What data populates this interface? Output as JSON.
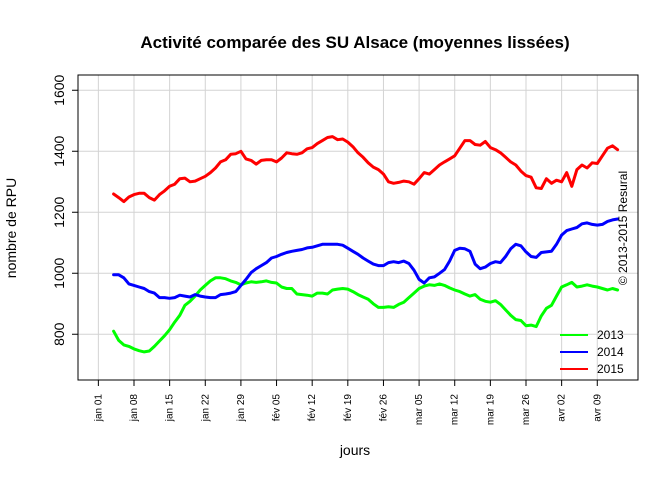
{
  "chart_data": {
    "type": "line",
    "title": "Activité comparée des SU Alsace (moyennes lissées)",
    "xlabel": "jours",
    "ylabel": "nombre de RPU",
    "credit": "© 2013-2015 Resural",
    "ylim": [
      650,
      1650
    ],
    "yticks": [
      800,
      1000,
      1200,
      1400,
      1600
    ],
    "xlim": [
      -4,
      106
    ],
    "xticks": [
      {
        "x": 0,
        "label": "jan 01"
      },
      {
        "x": 7,
        "label": "jan 08"
      },
      {
        "x": 14,
        "label": "jan 15"
      },
      {
        "x": 21,
        "label": "jan 22"
      },
      {
        "x": 28,
        "label": "jan 29"
      },
      {
        "x": 35,
        "label": "fév 05"
      },
      {
        "x": 42,
        "label": "fév 12"
      },
      {
        "x": 49,
        "label": "fév 19"
      },
      {
        "x": 56,
        "label": "fév 26"
      },
      {
        "x": 63,
        "label": "mar 05"
      },
      {
        "x": 70,
        "label": "mar 12"
      },
      {
        "x": 77,
        "label": "mar 19"
      },
      {
        "x": 84,
        "label": "mar 26"
      },
      {
        "x": 91,
        "label": "avr 02"
      },
      {
        "x": 98,
        "label": "avr 09"
      }
    ],
    "grid": true,
    "legend_position": "bottom-right",
    "series": [
      {
        "name": "2013",
        "color": "#00ff00",
        "points": [
          [
            3,
            810
          ],
          [
            4,
            780
          ],
          [
            5,
            765
          ],
          [
            6,
            760
          ],
          [
            7,
            752
          ],
          [
            8,
            746
          ],
          [
            9,
            742
          ],
          [
            10,
            745
          ],
          [
            11,
            760
          ],
          [
            12,
            778
          ],
          [
            13,
            795
          ],
          [
            14,
            815
          ],
          [
            15,
            840
          ],
          [
            16,
            862
          ],
          [
            17,
            895
          ],
          [
            18,
            908
          ],
          [
            19,
            925
          ],
          [
            20,
            945
          ],
          [
            21,
            960
          ],
          [
            22,
            975
          ],
          [
            23,
            985
          ],
          [
            24,
            985
          ],
          [
            25,
            982
          ],
          [
            26,
            975
          ],
          [
            27,
            970
          ],
          [
            28,
            962
          ],
          [
            29,
            968
          ],
          [
            30,
            972
          ],
          [
            31,
            970
          ],
          [
            32,
            972
          ],
          [
            33,
            975
          ],
          [
            34,
            970
          ],
          [
            35,
            968
          ],
          [
            36,
            955
          ],
          [
            37,
            950
          ],
          [
            38,
            950
          ],
          [
            39,
            932
          ],
          [
            40,
            930
          ],
          [
            41,
            928
          ],
          [
            42,
            925
          ],
          [
            43,
            935
          ],
          [
            44,
            935
          ],
          [
            45,
            932
          ],
          [
            46,
            945
          ],
          [
            47,
            948
          ],
          [
            48,
            950
          ],
          [
            49,
            948
          ],
          [
            50,
            940
          ],
          [
            51,
            930
          ],
          [
            52,
            922
          ],
          [
            53,
            915
          ],
          [
            54,
            900
          ],
          [
            55,
            888
          ],
          [
            56,
            888
          ],
          [
            57,
            890
          ],
          [
            58,
            888
          ],
          [
            59,
            898
          ],
          [
            60,
            905
          ],
          [
            61,
            920
          ],
          [
            62,
            935
          ],
          [
            63,
            950
          ],
          [
            64,
            958
          ],
          [
            65,
            962
          ],
          [
            66,
            960
          ],
          [
            67,
            965
          ],
          [
            68,
            960
          ],
          [
            69,
            952
          ],
          [
            70,
            945
          ],
          [
            71,
            940
          ],
          [
            72,
            932
          ],
          [
            73,
            925
          ],
          [
            74,
            930
          ],
          [
            75,
            915
          ],
          [
            76,
            908
          ],
          [
            77,
            905
          ],
          [
            78,
            910
          ],
          [
            79,
            898
          ],
          [
            80,
            880
          ],
          [
            81,
            862
          ],
          [
            82,
            848
          ],
          [
            83,
            845
          ],
          [
            84,
            828
          ],
          [
            85,
            830
          ],
          [
            86,
            825
          ],
          [
            87,
            860
          ],
          [
            88,
            885
          ],
          [
            89,
            895
          ],
          [
            90,
            925
          ],
          [
            91,
            955
          ],
          [
            92,
            962
          ],
          [
            93,
            970
          ],
          [
            94,
            955
          ],
          [
            95,
            958
          ],
          [
            96,
            962
          ],
          [
            97,
            958
          ],
          [
            98,
            955
          ],
          [
            99,
            950
          ],
          [
            100,
            945
          ],
          [
            101,
            950
          ],
          [
            102,
            945
          ]
        ]
      },
      {
        "name": "2014",
        "color": "#0000ff",
        "points": [
          [
            3,
            995
          ],
          [
            4,
            995
          ],
          [
            5,
            985
          ],
          [
            6,
            965
          ],
          [
            7,
            960
          ],
          [
            8,
            955
          ],
          [
            9,
            950
          ],
          [
            10,
            940
          ],
          [
            11,
            935
          ],
          [
            12,
            920
          ],
          [
            13,
            920
          ],
          [
            14,
            918
          ],
          [
            15,
            920
          ],
          [
            16,
            928
          ],
          [
            17,
            925
          ],
          [
            18,
            922
          ],
          [
            19,
            930
          ],
          [
            20,
            925
          ],
          [
            21,
            922
          ],
          [
            22,
            920
          ],
          [
            23,
            920
          ],
          [
            24,
            930
          ],
          [
            25,
            932
          ],
          [
            26,
            935
          ],
          [
            27,
            940
          ],
          [
            28,
            960
          ],
          [
            29,
            980
          ],
          [
            30,
            1002
          ],
          [
            31,
            1015
          ],
          [
            32,
            1025
          ],
          [
            33,
            1035
          ],
          [
            34,
            1050
          ],
          [
            35,
            1055
          ],
          [
            36,
            1062
          ],
          [
            37,
            1068
          ],
          [
            38,
            1072
          ],
          [
            39,
            1075
          ],
          [
            40,
            1078
          ],
          [
            41,
            1083
          ],
          [
            42,
            1085
          ],
          [
            43,
            1090
          ],
          [
            44,
            1095
          ],
          [
            45,
            1095
          ],
          [
            46,
            1095
          ],
          [
            47,
            1095
          ],
          [
            48,
            1092
          ],
          [
            49,
            1082
          ],
          [
            50,
            1072
          ],
          [
            51,
            1062
          ],
          [
            52,
            1050
          ],
          [
            53,
            1040
          ],
          [
            54,
            1030
          ],
          [
            55,
            1025
          ],
          [
            56,
            1025
          ],
          [
            57,
            1035
          ],
          [
            58,
            1038
          ],
          [
            59,
            1035
          ],
          [
            60,
            1040
          ],
          [
            61,
            1032
          ],
          [
            62,
            1010
          ],
          [
            63,
            980
          ],
          [
            64,
            968
          ],
          [
            65,
            985
          ],
          [
            66,
            988
          ],
          [
            67,
            1000
          ],
          [
            68,
            1012
          ],
          [
            69,
            1040
          ],
          [
            70,
            1075
          ],
          [
            71,
            1082
          ],
          [
            72,
            1080
          ],
          [
            73,
            1072
          ],
          [
            74,
            1030
          ],
          [
            75,
            1015
          ],
          [
            76,
            1020
          ],
          [
            77,
            1032
          ],
          [
            78,
            1038
          ],
          [
            79,
            1035
          ],
          [
            80,
            1055
          ],
          [
            81,
            1080
          ],
          [
            82,
            1095
          ],
          [
            83,
            1090
          ],
          [
            84,
            1070
          ],
          [
            85,
            1055
          ],
          [
            86,
            1052
          ],
          [
            87,
            1068
          ],
          [
            88,
            1070
          ],
          [
            89,
            1072
          ],
          [
            90,
            1095
          ],
          [
            91,
            1125
          ],
          [
            92,
            1140
          ],
          [
            93,
            1145
          ],
          [
            94,
            1150
          ],
          [
            95,
            1162
          ],
          [
            96,
            1165
          ],
          [
            97,
            1160
          ],
          [
            98,
            1158
          ],
          [
            99,
            1160
          ],
          [
            100,
            1170
          ],
          [
            101,
            1175
          ],
          [
            102,
            1178
          ]
        ]
      },
      {
        "name": "2015",
        "color": "#ff0000",
        "points": [
          [
            3,
            1260
          ],
          [
            4,
            1248
          ],
          [
            5,
            1235
          ],
          [
            6,
            1250
          ],
          [
            7,
            1258
          ],
          [
            8,
            1262
          ],
          [
            9,
            1262
          ],
          [
            10,
            1248
          ],
          [
            11,
            1240
          ],
          [
            12,
            1258
          ],
          [
            13,
            1270
          ],
          [
            14,
            1285
          ],
          [
            15,
            1292
          ],
          [
            16,
            1310
          ],
          [
            17,
            1312
          ],
          [
            18,
            1300
          ],
          [
            19,
            1302
          ],
          [
            20,
            1310
          ],
          [
            21,
            1318
          ],
          [
            22,
            1330
          ],
          [
            23,
            1345
          ],
          [
            24,
            1365
          ],
          [
            25,
            1372
          ],
          [
            26,
            1390
          ],
          [
            27,
            1392
          ],
          [
            28,
            1400
          ],
          [
            29,
            1375
          ],
          [
            30,
            1370
          ],
          [
            31,
            1358
          ],
          [
            32,
            1370
          ],
          [
            33,
            1372
          ],
          [
            34,
            1372
          ],
          [
            35,
            1365
          ],
          [
            36,
            1378
          ],
          [
            37,
            1395
          ],
          [
            38,
            1392
          ],
          [
            39,
            1390
          ],
          [
            40,
            1395
          ],
          [
            41,
            1408
          ],
          [
            42,
            1412
          ],
          [
            43,
            1425
          ],
          [
            44,
            1435
          ],
          [
            45,
            1445
          ],
          [
            46,
            1448
          ],
          [
            47,
            1438
          ],
          [
            48,
            1440
          ],
          [
            49,
            1430
          ],
          [
            50,
            1415
          ],
          [
            51,
            1395
          ],
          [
            52,
            1380
          ],
          [
            53,
            1362
          ],
          [
            54,
            1348
          ],
          [
            55,
            1340
          ],
          [
            56,
            1325
          ],
          [
            57,
            1300
          ],
          [
            58,
            1295
          ],
          [
            59,
            1298
          ],
          [
            60,
            1302
          ],
          [
            61,
            1300
          ],
          [
            62,
            1292
          ],
          [
            63,
            1310
          ],
          [
            64,
            1330
          ],
          [
            65,
            1325
          ],
          [
            66,
            1340
          ],
          [
            67,
            1355
          ],
          [
            68,
            1365
          ],
          [
            69,
            1375
          ],
          [
            70,
            1385
          ],
          [
            71,
            1410
          ],
          [
            72,
            1435
          ],
          [
            73,
            1435
          ],
          [
            74,
            1422
          ],
          [
            75,
            1420
          ],
          [
            76,
            1432
          ],
          [
            77,
            1412
          ],
          [
            78,
            1405
          ],
          [
            79,
            1395
          ],
          [
            80,
            1380
          ],
          [
            81,
            1365
          ],
          [
            82,
            1355
          ],
          [
            83,
            1335
          ],
          [
            84,
            1320
          ],
          [
            85,
            1315
          ],
          [
            86,
            1280
          ],
          [
            87,
            1278
          ],
          [
            88,
            1310
          ],
          [
            89,
            1295
          ],
          [
            90,
            1305
          ],
          [
            91,
            1300
          ],
          [
            92,
            1330
          ],
          [
            93,
            1285
          ],
          [
            94,
            1340
          ],
          [
            95,
            1355
          ],
          [
            96,
            1345
          ],
          [
            97,
            1362
          ],
          [
            98,
            1360
          ],
          [
            99,
            1385
          ],
          [
            100,
            1410
          ],
          [
            101,
            1418
          ],
          [
            102,
            1405
          ]
        ]
      }
    ]
  }
}
